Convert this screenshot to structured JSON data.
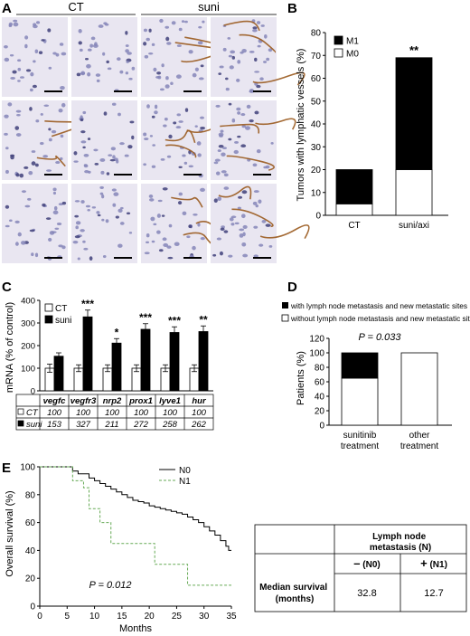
{
  "panels": {
    "a": {
      "letter": "A",
      "group_left": "CT",
      "group_right": "suni"
    },
    "b": {
      "letter": "B",
      "chart_data": {
        "type": "bar",
        "stacked": true,
        "categories": [
          "CT",
          "suni/axi"
        ],
        "series": [
          {
            "name": "M0",
            "values": [
              5,
              20
            ],
            "color": "#ffffff"
          },
          {
            "name": "M1",
            "values": [
              15,
              49
            ],
            "color": "#000000"
          }
        ],
        "totals": [
          20,
          69
        ],
        "ylabel": "Tumors with lymphatic vessels (%)",
        "ylim": [
          0,
          80
        ],
        "yticks": [
          0,
          10,
          20,
          30,
          40,
          50,
          60,
          70,
          80
        ],
        "annotations": [
          "",
          "**"
        ],
        "legend": "top-left"
      }
    },
    "c": {
      "letter": "C",
      "chart_data": {
        "type": "bar",
        "categories": [
          "vegfc",
          "vegfr3",
          "nrp2",
          "prox1",
          "lyve1",
          "hur"
        ],
        "series": [
          {
            "name": "CT",
            "values": [
              100,
              100,
              100,
              100,
              100,
              100
            ],
            "errors": [
              18,
              15,
              15,
              15,
              15,
              15
            ],
            "color": "#ffffff"
          },
          {
            "name": "suni",
            "values": [
              153,
              327,
              211,
              272,
              258,
              262
            ],
            "errors": [
              15,
              30,
              20,
              25,
              25,
              25
            ],
            "color": "#000000"
          }
        ],
        "ylabel": "mRNA (% of control)",
        "ylim": [
          0,
          400
        ],
        "yticks": [
          0,
          100,
          200,
          300,
          400
        ],
        "significance": [
          "",
          "***",
          "*",
          "***",
          "***",
          "**"
        ],
        "table_rows": [
          {
            "label": "CT",
            "values": [
              "100",
              "100",
              "100",
              "100",
              "100",
              "100"
            ]
          },
          {
            "label": "suni",
            "values": [
              "153",
              "327",
              "211",
              "272",
              "258",
              "262"
            ]
          }
        ],
        "legend": "top-left"
      }
    },
    "d": {
      "letter": "D",
      "legend": [
        "with lymph node metastasis and new metastatic sites",
        "without lymph node metastasis and new metastatic sites"
      ],
      "chart_data": {
        "type": "bar",
        "stacked": true,
        "categories": [
          "sunitinib\ntreatment",
          "other\ntreatment"
        ],
        "category_lines": [
          [
            "sunitinib",
            "treatment"
          ],
          [
            "other",
            "treatment"
          ]
        ],
        "series": [
          {
            "name": "without lymph node metastasis and new metastatic sites",
            "values": [
              65,
              100
            ],
            "color": "#ffffff"
          },
          {
            "name": "with lymph node metastasis and new metastatic sites",
            "values": [
              35,
              0
            ],
            "color": "#000000"
          }
        ],
        "ylabel": "Patients (%)",
        "ylim": [
          0,
          120
        ],
        "yticks": [
          0,
          20,
          40,
          60,
          80,
          100,
          120
        ],
        "pvalue": "P = 0.033"
      }
    },
    "e": {
      "letter": "E",
      "chart_data": {
        "type": "line",
        "step": true,
        "xlabel": "Months",
        "ylabel": "Overall survival (%)",
        "xlim": [
          0,
          35
        ],
        "ylim": [
          0,
          100
        ],
        "xticks": [
          0,
          5,
          10,
          15,
          20,
          25,
          30,
          35
        ],
        "yticks": [
          0,
          20,
          40,
          60,
          80,
          100
        ],
        "pvalue": "P = 0.012",
        "series": [
          {
            "name": "N0",
            "style": "solid",
            "x": [
              0,
              6,
              7,
              9,
              10,
              11,
              12,
              13,
              14,
              15,
              16,
              17,
              18,
              19,
              20,
              21,
              22,
              23,
              24,
              25,
              26,
              27,
              28,
              29,
              30,
              31,
              32,
              33,
              34,
              34.5,
              35
            ],
            "y": [
              100,
              97,
              95,
              92,
              90,
              88,
              86,
              84,
              82,
              80,
              78,
              76,
              75,
              74,
              72,
              71,
              70,
              69,
              68,
              67,
              66,
              64,
              62,
              60,
              57,
              54,
              51,
              47,
              43,
              40,
              40
            ]
          },
          {
            "name": "N1",
            "style": "dashed",
            "x": [
              0,
              3,
              6,
              8,
              9,
              11,
              13,
              15,
              21,
              27,
              35
            ],
            "y": [
              100,
              100,
              90,
              85,
              70,
              60,
              45,
              45,
              30,
              15,
              15
            ]
          }
        ]
      },
      "table": {
        "header": "Lymph node metastasis (N)",
        "col1_sign": "–",
        "col1_label": "(N0)",
        "col2_sign": "+",
        "col2_label": "(N1)",
        "row_label_1": "Median survival",
        "row_label_2": "(months)",
        "val1": "32.8",
        "val2": "12.7"
      }
    }
  }
}
